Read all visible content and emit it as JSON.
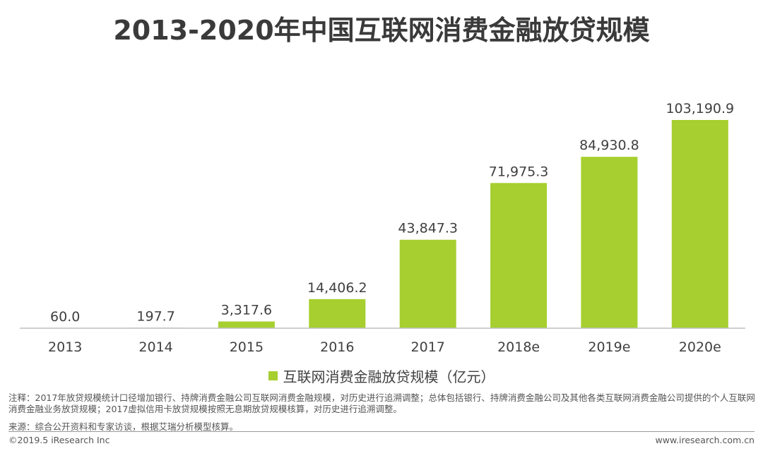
{
  "title": "2013-2020年中国互联网消费金融放贷规模",
  "colors": {
    "bar": "#a6cf2f",
    "axis": "#bfbfbf",
    "label": "#404040"
  },
  "chart_data": {
    "type": "bar",
    "title": "2013-2020年中国互联网消费金融放贷规模",
    "categories": [
      "2013",
      "2014",
      "2015",
      "2016",
      "2017",
      "2018e",
      "2019e",
      "2020e"
    ],
    "series": [
      {
        "name": "互联网消费金融放贷规模（亿元）",
        "values": [
          60.0,
          197.7,
          3317.6,
          14406.2,
          43847.3,
          71975.3,
          84930.8,
          103190.9
        ]
      }
    ],
    "value_labels": [
      "60.0",
      "197.7",
      "3,317.6",
      "14,406.2",
      "43,847.3",
      "71,975.3",
      "84,930.8",
      "103,190.9"
    ],
    "ylim": [
      0,
      120000
    ],
    "grid": false,
    "legend_position": "bottom"
  },
  "legend_label": "互联网消费金融放贷规模（亿元）",
  "note": "注释：2017年放贷规模统计口径增加银行、持牌消费金融公司互联网消费金融规模，对历史进行追溯调整；总体包括银行、持牌消费金融公司及其他各类互联网消费金融公司提供的个人互联网消费金融业务放贷规模；2017虚拟信用卡放贷规模按照无息期放贷规模核算，对历史进行追溯调整。",
  "source": "来源：综合公开资料和专家访谈，根据艾瑞分析模型核算。",
  "copyright": "©2019.5 iResearch Inc",
  "website": "www.iresearch.com.cn"
}
